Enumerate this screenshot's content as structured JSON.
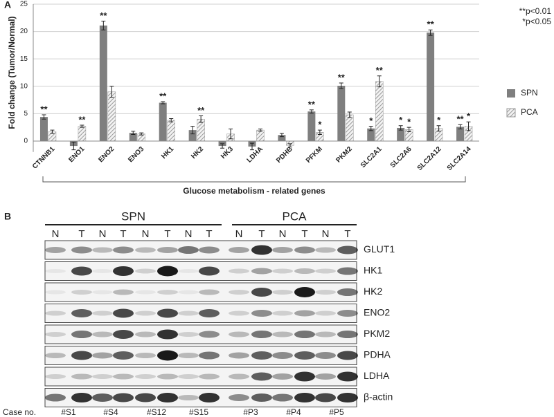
{
  "panel_a": {
    "label": "A"
  },
  "chart_data": {
    "type": "bar",
    "y_label": "Fold change (Tumor/Normal)",
    "x_label": "Glucose metabolism - related genes",
    "notes": [
      "**p<0.01",
      "*p<0.05"
    ],
    "categories": [
      "CTNNB1",
      "ENO1",
      "ENO2",
      "ENO3",
      "HK1",
      "HK2",
      "HK3",
      "LDHA",
      "PDHB",
      "PFKM",
      "PKM2",
      "SLC2A1",
      "SLC2A6",
      "SLC2A12",
      "SLC2A14"
    ],
    "series": [
      {
        "name": "SPN",
        "color": "#7f7f7f",
        "hatch": false,
        "values": [
          4.4,
          -0.9,
          21.1,
          1.5,
          7.0,
          2.0,
          -0.9,
          -1.0,
          1.1,
          5.4,
          10.1,
          2.3,
          2.4,
          19.8,
          2.6
        ],
        "errors": [
          0.4,
          0.7,
          0.8,
          0.3,
          0.2,
          0.7,
          0.4,
          0.6,
          0.3,
          0.3,
          0.5,
          0.4,
          0.4,
          0.5,
          0.4
        ],
        "significance": [
          "**",
          null,
          "**",
          null,
          "**",
          null,
          null,
          null,
          null,
          "**",
          "**",
          "*",
          "*",
          "**",
          "**"
        ]
      },
      {
        "name": "PCA",
        "color": "#9a9a9a",
        "hatch": true,
        "values": [
          1.7,
          2.7,
          9.0,
          1.3,
          3.8,
          4.0,
          1.3,
          2.0,
          -0.8,
          1.6,
          4.8,
          10.9,
          2.1,
          2.3,
          2.7
        ],
        "errors": [
          0.3,
          0.2,
          1.0,
          0.2,
          0.3,
          0.6,
          0.9,
          0.2,
          0.3,
          0.4,
          0.5,
          1.0,
          0.4,
          0.5,
          0.8
        ],
        "significance": [
          null,
          "**",
          null,
          null,
          null,
          "**",
          null,
          null,
          null,
          "*",
          null,
          "**",
          "*",
          "*",
          "*"
        ]
      }
    ],
    "ylim": [
      -2,
      25
    ],
    "yticks": [
      0,
      5,
      10,
      15,
      20,
      25
    ],
    "grid": true,
    "legend": "right"
  },
  "panel_b": {
    "label": "B",
    "groups": [
      {
        "name": "SPN",
        "lanes": [
          "N",
          "T",
          "N",
          "T",
          "N",
          "T",
          "N",
          "T"
        ]
      },
      {
        "name": "PCA",
        "lanes": [
          "N",
          "T",
          "N",
          "T",
          "N",
          "T"
        ]
      }
    ],
    "proteins": [
      "GLUT1",
      "HK1",
      "HK2",
      "ENO2",
      "PKM2",
      "PDHA",
      "LDHA",
      "β-actin"
    ],
    "case_label": "Case no.",
    "cases": [
      "#S1",
      "#S4",
      "#S12",
      "#S15",
      "#P3",
      "#P4",
      "#P5"
    ]
  }
}
